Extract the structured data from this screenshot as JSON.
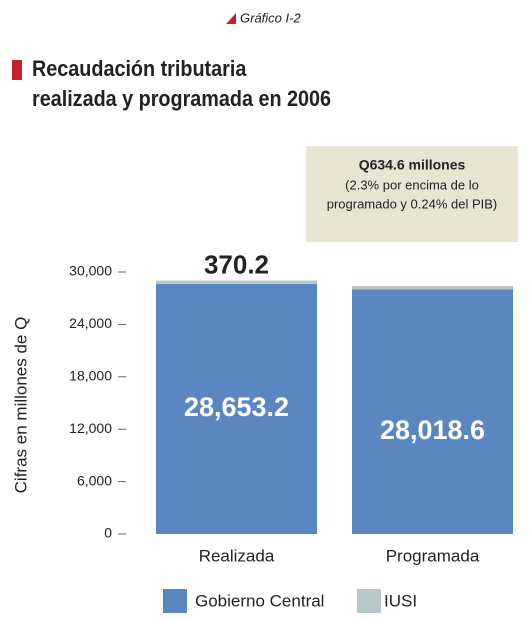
{
  "figure_label": "Gráfico I-2",
  "chart_data": {
    "type": "stacked_bar",
    "title_lines": [
      "Recaudación tributaria",
      "realizada y programada en 2006"
    ],
    "annotation": {
      "title": "Q634.6 millones",
      "lines": [
        "(2.3% por encima de lo",
        "programado y 0.24% del PIB)"
      ]
    },
    "ylabel": "Cifras en millones de Q",
    "categories": [
      "Realizada",
      "Programada"
    ],
    "series": [
      {
        "name": "Gobierno Central",
        "color": "#5b87c0",
        "values": [
          28653.2,
          28018.6
        ],
        "value_labels": [
          "28,653.2",
          "28,018.6"
        ]
      },
      {
        "name": "IUSI",
        "color": "#b7c6c9",
        "values": [
          370.2,
          370
        ],
        "value_labels": [
          "370.2",
          null
        ]
      }
    ],
    "ylim": [
      0,
      30000
    ],
    "yticks": [
      0,
      {
        "value": 6000,
        "label": "6,000"
      },
      {
        "value": 12000,
        "label": "12,000"
      },
      {
        "value": 18000,
        "label": "18,000"
      },
      {
        "value": 24000,
        "label": "24,000"
      },
      {
        "value": 30000,
        "label": "30,000"
      }
    ],
    "legend": "bottom"
  }
}
